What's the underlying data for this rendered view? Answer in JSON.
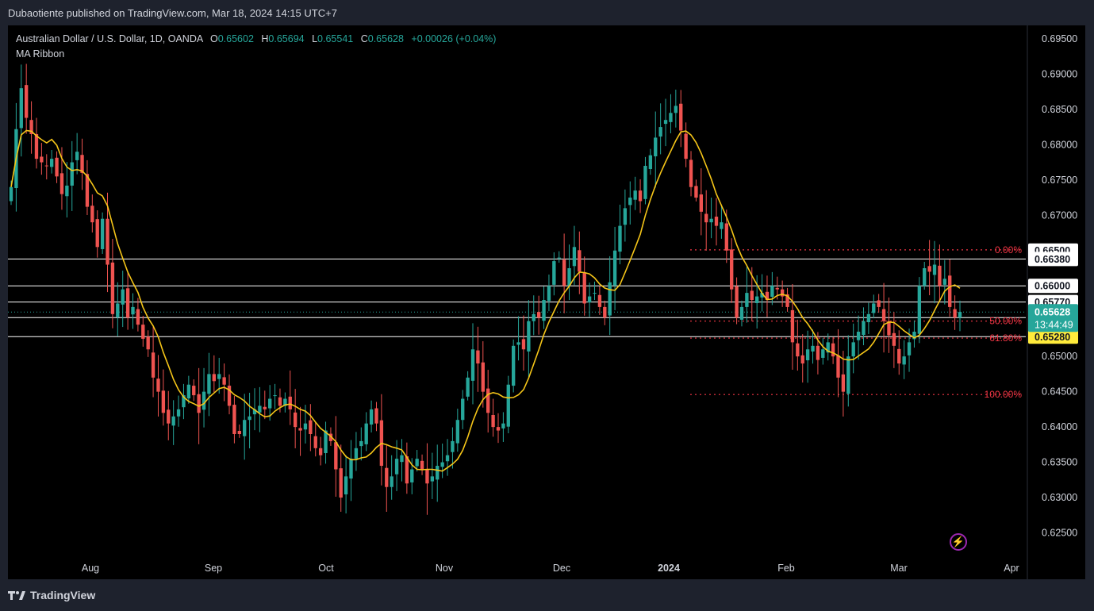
{
  "header": {
    "publisher": "Dubaotiente published on TradingView.com, Mar 18, 2024 14:15 UTC+7"
  },
  "legend": {
    "symbol": "Australian Dollar / U.S. Dollar, 1D, OANDA",
    "o_label": "O",
    "o_value": "0.65602",
    "h_label": "H",
    "h_value": "0.65694",
    "l_label": "L",
    "l_value": "0.65541",
    "c_label": "C",
    "c_value": "0.65628",
    "change": "+0.00026 (+0.04%)",
    "indicator": "MA Ribbon"
  },
  "footer": {
    "brand": "TradingView"
  },
  "chart_data": {
    "type": "candlestick",
    "symbol": "AUDUSD",
    "timeframe": "1D",
    "colors": {
      "up": "#26a69a",
      "down": "#ef5350",
      "ma": "#f5c518",
      "fib": "#f23645",
      "level": "#ffffff",
      "price_tag": "#26a69a",
      "highlight_tag": "#ffeb3b"
    },
    "y_ticks": [
      "0.69500",
      "0.69000",
      "0.68500",
      "0.68000",
      "0.67500",
      "0.67000",
      "0.66500",
      "0.66000",
      "0.65500",
      "0.65000",
      "0.64500",
      "0.64000",
      "0.63500",
      "0.63000",
      "0.62500"
    ],
    "ylim": [
      0.6218,
      0.6969
    ],
    "x_ticks": [
      "Aug",
      "Sep",
      "Oct",
      "Nov",
      "Dec",
      "2024",
      "Feb",
      "Mar",
      "Apr"
    ],
    "price_labels": [
      {
        "text": "0.66500",
        "value": 0.665,
        "style": "white"
      },
      {
        "text": "0.66380",
        "value": 0.6638,
        "style": "white"
      },
      {
        "text": "0.66000",
        "value": 0.66,
        "style": "white"
      },
      {
        "text": "0.65770",
        "value": 0.6577,
        "style": "white"
      },
      {
        "text": "0.65550",
        "value": 0.6555,
        "style": "yellow"
      },
      {
        "text": "0.65280",
        "value": 0.6528,
        "style": "yellow"
      }
    ],
    "current_price": {
      "value": 0.65628,
      "label": "0.65628",
      "countdown": "13:44:49"
    },
    "horizontal_levels": [
      0.6638,
      0.66,
      0.6577,
      0.6555,
      0.6528
    ],
    "fib_levels": [
      {
        "label": "0.00%",
        "value": 0.6651
      },
      {
        "label": "50.00%",
        "value": 0.655
      },
      {
        "label": "61.80%",
        "value": 0.6526
      },
      {
        "label": "100.00%",
        "value": 0.6446
      }
    ],
    "closes": [
      0.674,
      0.6822,
      0.688,
      0.6838,
      0.6815,
      0.678,
      0.6775,
      0.677,
      0.678,
      0.6755,
      0.673,
      0.6742,
      0.6775,
      0.679,
      0.676,
      0.6712,
      0.669,
      0.6655,
      0.6695,
      0.663,
      0.656,
      0.6575,
      0.6595,
      0.6555,
      0.657,
      0.6545,
      0.6525,
      0.651,
      0.647,
      0.645,
      0.642,
      0.6405,
      0.6415,
      0.6425,
      0.6445,
      0.646,
      0.6445,
      0.642,
      0.645,
      0.6475,
      0.6465,
      0.6475,
      0.646,
      0.643,
      0.639,
      0.639,
      0.641,
      0.6415,
      0.6425,
      0.643,
      0.6425,
      0.644,
      0.6445,
      0.643,
      0.644,
      0.6425,
      0.64,
      0.6395,
      0.6405,
      0.639,
      0.637,
      0.636,
      0.6395,
      0.638,
      0.634,
      0.63,
      0.633,
      0.6355,
      0.637,
      0.638,
      0.6405,
      0.6425,
      0.6405,
      0.6345,
      0.6315,
      0.633,
      0.6355,
      0.636,
      0.632,
      0.634,
      0.6355,
      0.634,
      0.632,
      0.633,
      0.6345,
      0.635,
      0.636,
      0.638,
      0.641,
      0.644,
      0.647,
      0.651,
      0.649,
      0.645,
      0.642,
      0.64,
      0.6395,
      0.6405,
      0.646,
      0.6515,
      0.652,
      0.651,
      0.655,
      0.656,
      0.6555,
      0.658,
      0.66,
      0.6635,
      0.664,
      0.66,
      0.6625,
      0.6655,
      0.662,
      0.6575,
      0.6585,
      0.659,
      0.657,
      0.6555,
      0.6605,
      0.665,
      0.6685,
      0.671,
      0.6725,
      0.6735,
      0.672,
      0.677,
      0.6785,
      0.681,
      0.6825,
      0.6835,
      0.6845,
      0.6855,
      0.682,
      0.678,
      0.674,
      0.6725,
      0.6705,
      0.669,
      0.6695,
      0.6685,
      0.669,
      0.665,
      0.6595,
      0.6555,
      0.657,
      0.659,
      0.658,
      0.6585,
      0.659,
      0.658,
      0.66,
      0.6595,
      0.6585,
      0.657,
      0.652,
      0.65,
      0.649,
      0.651,
      0.6515,
      0.6495,
      0.651,
      0.652,
      0.65,
      0.647,
      0.645,
      0.65,
      0.652,
      0.6535,
      0.655,
      0.656,
      0.6575,
      0.657,
      0.655,
      0.653,
      0.6515,
      0.649,
      0.65,
      0.652,
      0.6535,
      0.66,
      0.6625,
      0.662,
      0.663,
      0.66,
      0.661,
      0.657,
      0.6555,
      0.6563
    ],
    "ma_label": "MA Ribbon"
  }
}
